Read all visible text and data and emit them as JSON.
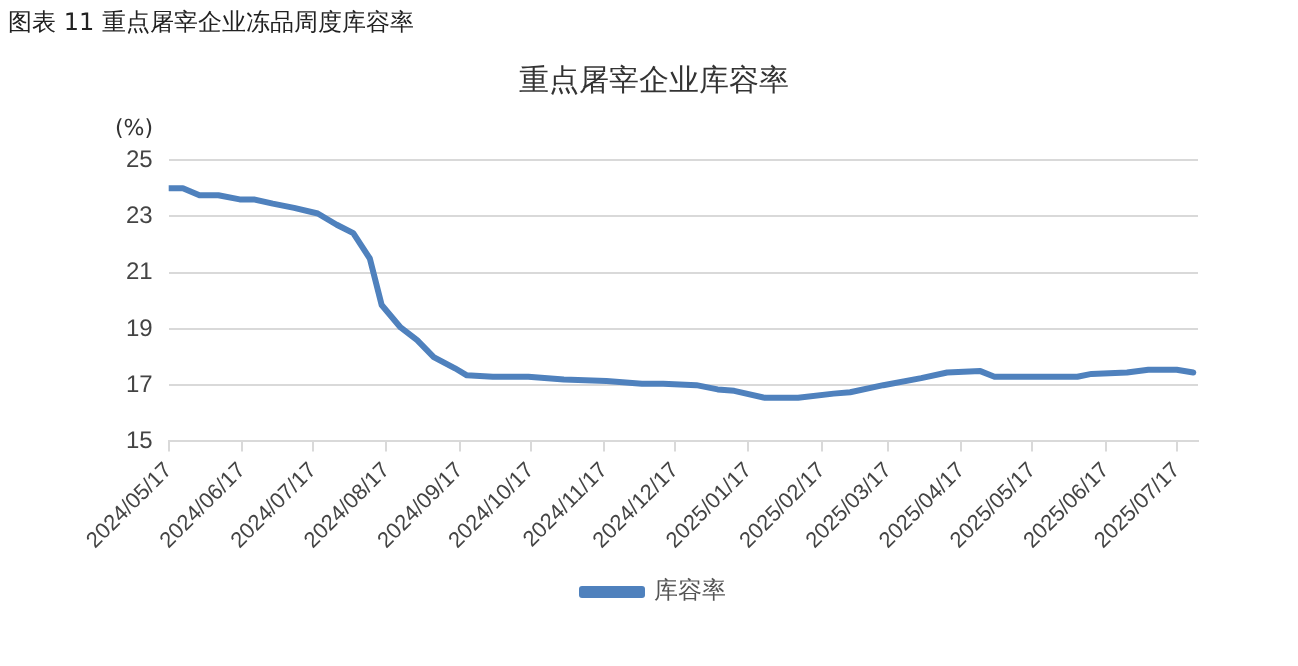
{
  "chart_data": {
    "type": "line",
    "title": "图表 11  重点屠宰企业冻品周度库容率",
    "subtitle": "重点屠宰企业库容率",
    "ylabel": "(%)",
    "x": [
      "2024-05-17",
      "2024-05-23",
      "2024-05-30",
      "2024-06-07",
      "2024-06-16",
      "2024-06-22",
      "2024-06-30",
      "2024-07-09",
      "2024-07-19",
      "2024-07-27",
      "2024-08-03",
      "2024-08-10",
      "2024-08-15",
      "2024-08-23",
      "2024-08-30",
      "2024-09-06",
      "2024-09-15",
      "2024-09-20",
      "2024-10-01",
      "2024-10-16",
      "2024-10-31",
      "2024-11-18",
      "2024-12-03",
      "2024-12-12",
      "2024-12-26",
      "2025-01-04",
      "2025-01-11",
      "2025-01-24",
      "2025-02-07",
      "2025-02-22",
      "2025-03-01",
      "2025-03-15",
      "2025-03-31",
      "2025-04-11",
      "2025-04-25",
      "2025-05-01",
      "2025-05-18",
      "2025-06-05",
      "2025-06-11",
      "2025-06-26",
      "2025-07-05",
      "2025-07-17",
      "2025-07-24"
    ],
    "series": [
      {
        "name": "库容率",
        "color": "#4f81bd",
        "values": [
          24.0,
          24.0,
          23.75,
          23.75,
          23.6,
          23.6,
          23.45,
          23.3,
          23.1,
          22.7,
          22.4,
          21.5,
          19.85,
          19.05,
          18.6,
          18.0,
          17.6,
          17.35,
          17.3,
          17.3,
          17.2,
          17.15,
          17.05,
          17.05,
          17.0,
          16.85,
          16.8,
          16.55,
          16.55,
          16.7,
          16.75,
          17.0,
          17.25,
          17.45,
          17.5,
          17.3,
          17.3,
          17.3,
          17.4,
          17.45,
          17.55,
          17.55,
          17.45
        ]
      }
    ],
    "xlim": [
      "2024-05-17",
      "2025-07-26"
    ],
    "xticks": [
      {
        "value": "2024-05-17",
        "label": "2024/05/17"
      },
      {
        "value": "2024-06-17",
        "label": "2024/06/17"
      },
      {
        "value": "2024-07-17",
        "label": "2024/07/17"
      },
      {
        "value": "2024-08-17",
        "label": "2024/08/17"
      },
      {
        "value": "2024-09-17",
        "label": "2024/09/17"
      },
      {
        "value": "2024-10-17",
        "label": "2024/10/17"
      },
      {
        "value": "2024-11-17",
        "label": "2024/11/17"
      },
      {
        "value": "2024-12-17",
        "label": "2024/12/17"
      },
      {
        "value": "2025-01-17",
        "label": "2025/01/17"
      },
      {
        "value": "2025-02-17",
        "label": "2025/02/17"
      },
      {
        "value": "2025-03-17",
        "label": "2025/03/17"
      },
      {
        "value": "2025-04-17",
        "label": "2025/04/17"
      },
      {
        "value": "2025-05-17",
        "label": "2025/05/17"
      },
      {
        "value": "2025-06-17",
        "label": "2025/06/17"
      },
      {
        "value": "2025-07-17",
        "label": "2025/07/17"
      }
    ],
    "ylim": [
      15,
      25
    ],
    "yticks": [
      15,
      17,
      19,
      21,
      23,
      25
    ],
    "grid": "y",
    "legend": "bottom",
    "marker": "none",
    "line_style": "solid"
  }
}
